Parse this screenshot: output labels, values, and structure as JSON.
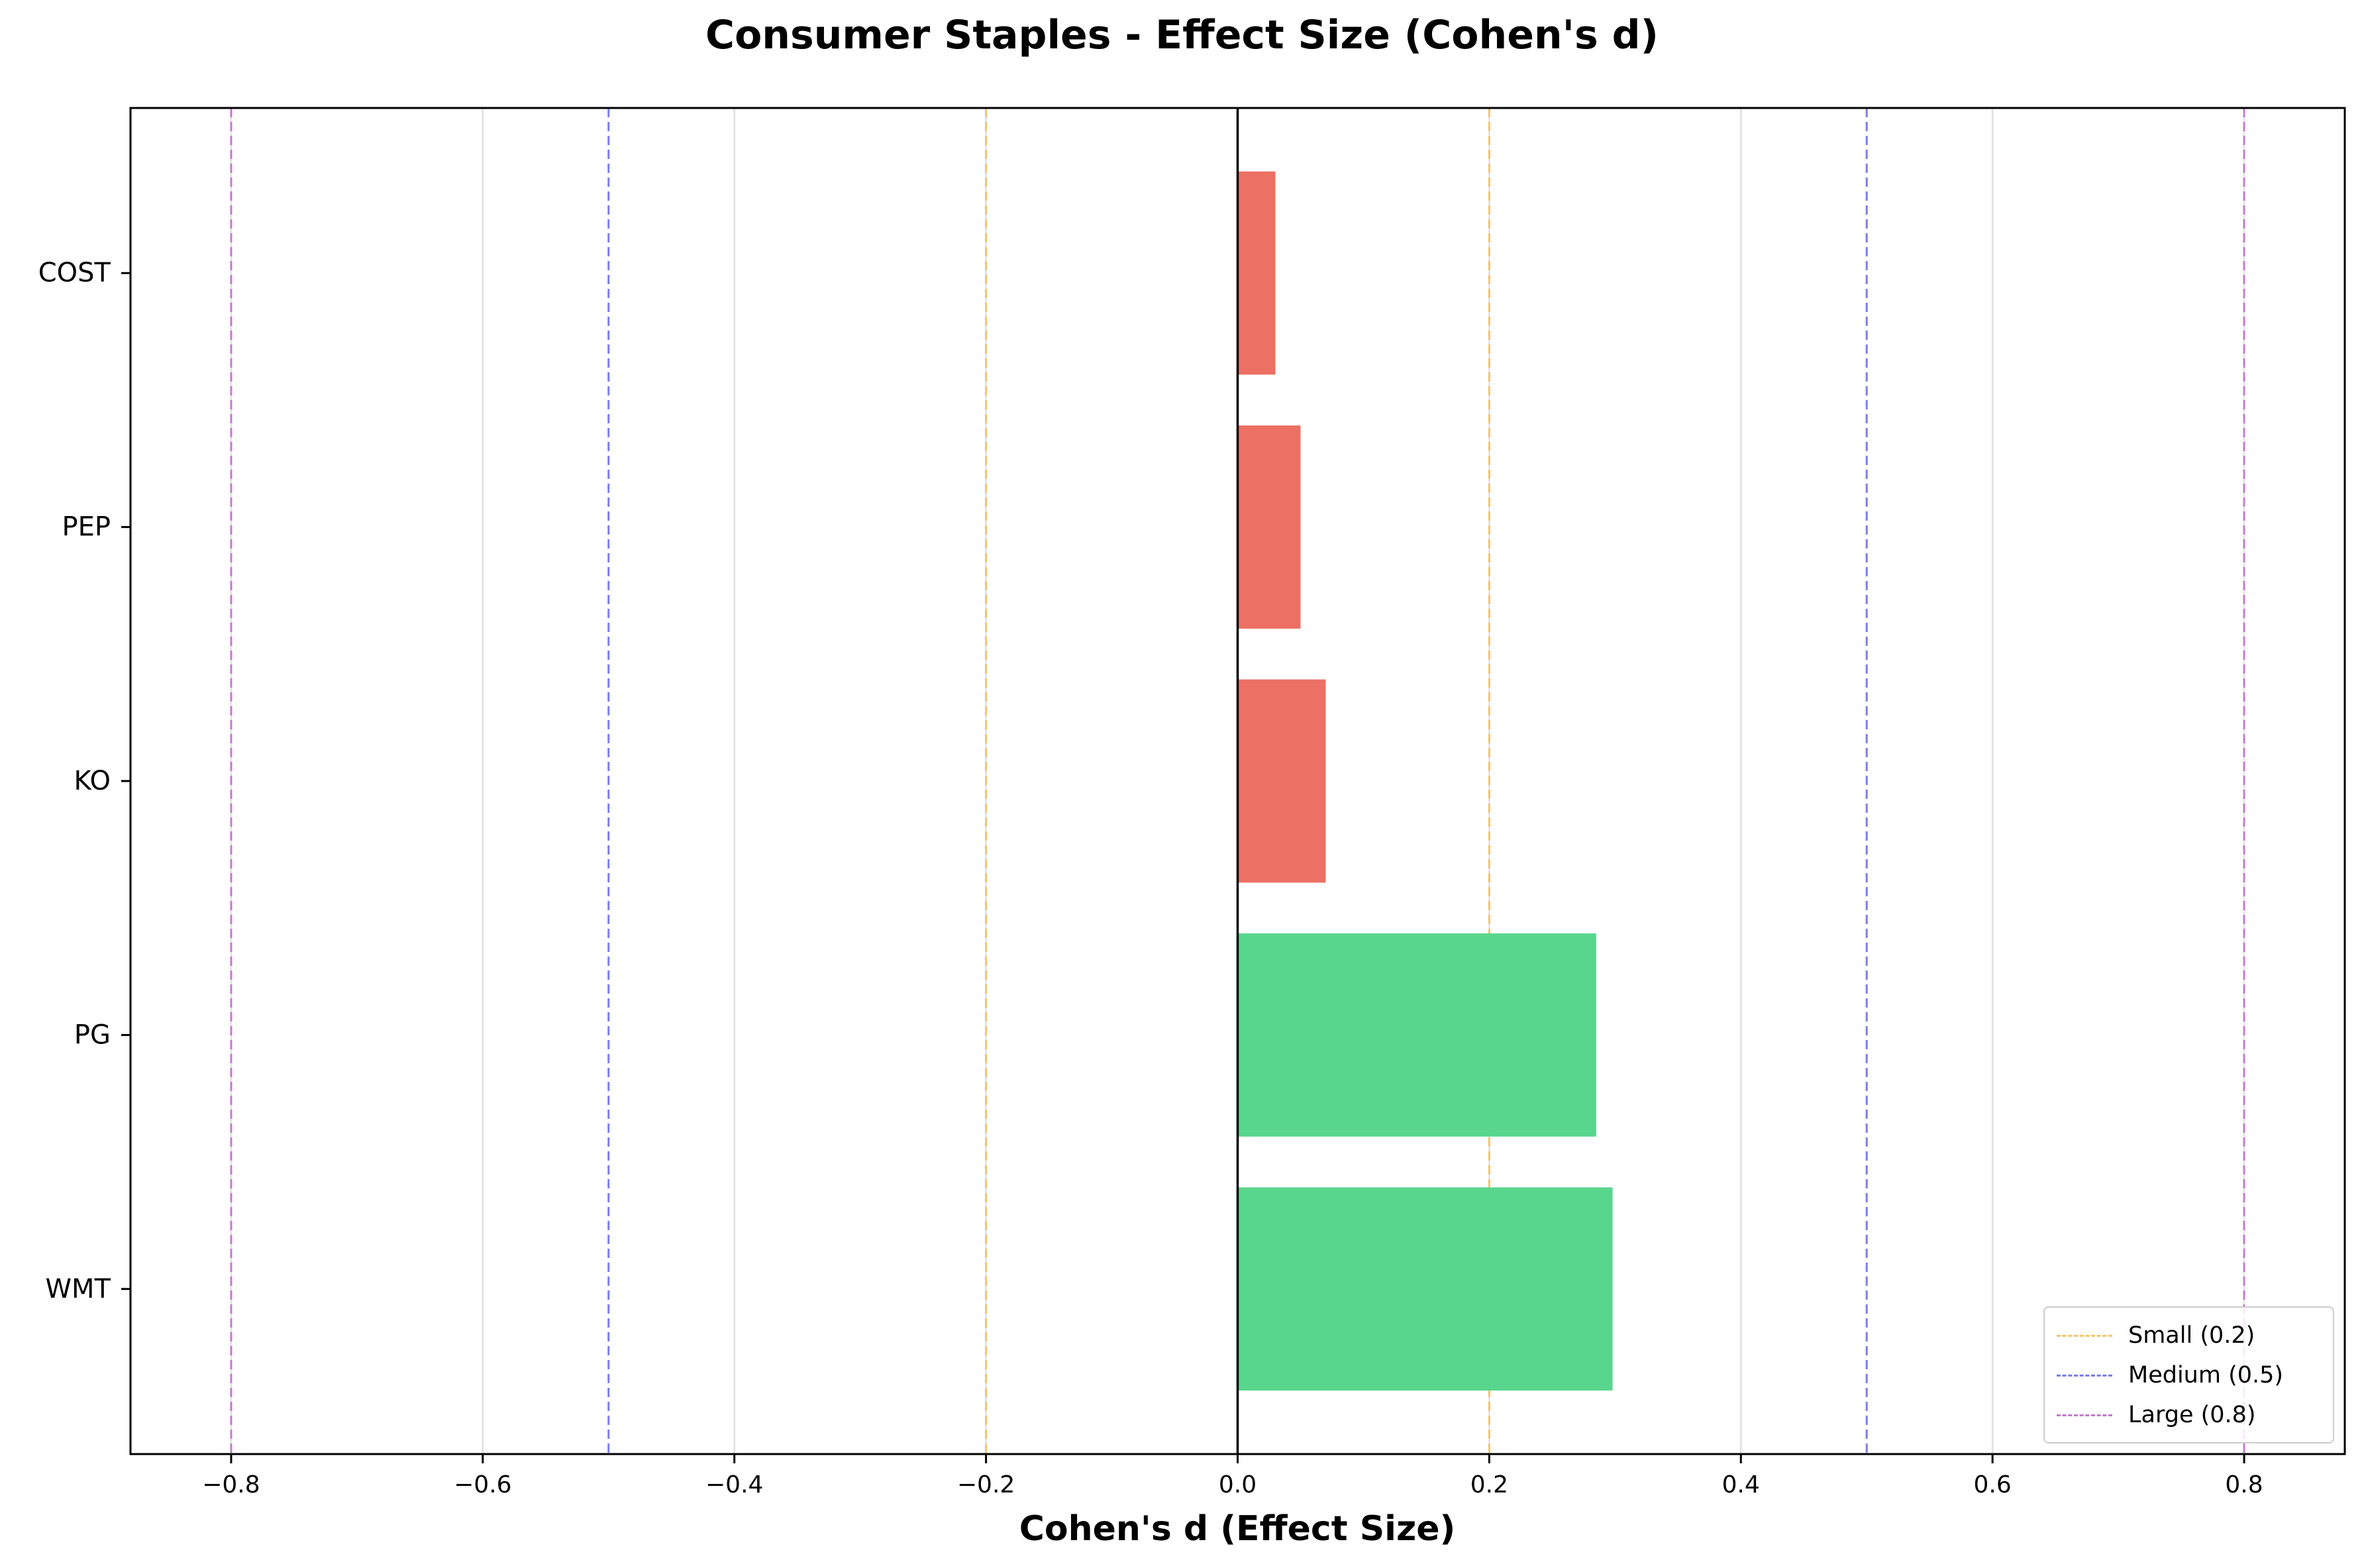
{
  "chart_data": {
    "type": "bar",
    "orientation": "horizontal",
    "title": "Consumer Staples - Effect Size (Cohen's d)",
    "xlabel": "Cohen's d (Effect Size)",
    "ylabel": "",
    "xlim": [
      -0.88,
      0.88
    ],
    "xticks": [
      -0.8,
      -0.6,
      -0.4,
      -0.2,
      0.0,
      0.2,
      0.4,
      0.6,
      0.8
    ],
    "xtick_labels": [
      "−0.8",
      "−0.6",
      "−0.4",
      "−0.2",
      "0.0",
      "0.2",
      "0.4",
      "0.6",
      "0.8"
    ],
    "grid": "x",
    "categories": [
      "COST",
      "PEP",
      "KO",
      "PG",
      "WMT"
    ],
    "values": [
      0.03,
      0.05,
      0.07,
      0.285,
      0.298
    ],
    "bar_colors": [
      "#e74c3c",
      "#e74c3c",
      "#e74c3c",
      "#2ecc71",
      "#2ecc71"
    ],
    "zero_line": 0.0,
    "reference_lines": [
      {
        "label": "Small (0.2)",
        "values": [
          -0.2,
          0.2
        ],
        "color": "#f39c12"
      },
      {
        "label": "Medium (0.5)",
        "values": [
          -0.5,
          0.5
        ],
        "color": "#3333dd"
      },
      {
        "label": "Large (0.8)",
        "values": [
          -0.8,
          0.8
        ],
        "color": "#9b3aa8"
      }
    ],
    "legend_position": "lower-right"
  }
}
